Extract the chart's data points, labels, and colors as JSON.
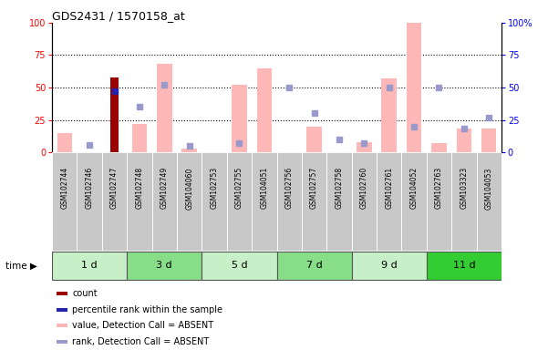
{
  "title": "GDS2431 / 1570158_at",
  "samples": [
    "GSM102744",
    "GSM102746",
    "GSM102747",
    "GSM102748",
    "GSM102749",
    "GSM104060",
    "GSM102753",
    "GSM102755",
    "GSM104051",
    "GSM102756",
    "GSM102757",
    "GSM102758",
    "GSM102760",
    "GSM102761",
    "GSM104052",
    "GSM102763",
    "GSM103323",
    "GSM104053"
  ],
  "time_groups": [
    {
      "label": "1 d",
      "start": 0,
      "end": 3,
      "color": "#c8f0c8"
    },
    {
      "label": "3 d",
      "start": 3,
      "end": 6,
      "color": "#88dd88"
    },
    {
      "label": "5 d",
      "start": 6,
      "end": 9,
      "color": "#c8f0c8"
    },
    {
      "label": "7 d",
      "start": 9,
      "end": 12,
      "color": "#88dd88"
    },
    {
      "label": "9 d",
      "start": 12,
      "end": 15,
      "color": "#c8f0c8"
    },
    {
      "label": "11 d",
      "start": 15,
      "end": 18,
      "color": "#33cc33"
    }
  ],
  "bar_values_pink": [
    15,
    0,
    0,
    22,
    68,
    3,
    0,
    52,
    65,
    0,
    20,
    0,
    8,
    57,
    100,
    7,
    18,
    18
  ],
  "bar_values_red": [
    0,
    0,
    58,
    0,
    0,
    0,
    0,
    0,
    0,
    0,
    0,
    0,
    0,
    0,
    0,
    0,
    0,
    0
  ],
  "dot_values_blue_dark": [
    0,
    0,
    47,
    0,
    0,
    0,
    0,
    0,
    0,
    0,
    0,
    0,
    0,
    0,
    0,
    0,
    0,
    0
  ],
  "dot_values_blue_light": [
    0,
    6,
    0,
    35,
    52,
    5,
    0,
    7,
    0,
    50,
    30,
    10,
    7,
    50,
    20,
    50,
    18,
    27
  ],
  "ylim": [
    0,
    100
  ],
  "yticks": [
    0,
    25,
    50,
    75,
    100
  ],
  "bar_pink_color": "#ffb8b8",
  "bar_red_color": "#990000",
  "dot_dark_blue_color": "#2222aa",
  "dot_light_blue_color": "#9999cc",
  "sample_bg_color": "#c8c8c8",
  "legend": [
    {
      "color": "#990000",
      "label": "count"
    },
    {
      "color": "#2222aa",
      "label": "percentile rank within the sample"
    },
    {
      "color": "#ffb8b8",
      "label": "value, Detection Call = ABSENT"
    },
    {
      "color": "#9999cc",
      "label": "rank, Detection Call = ABSENT"
    }
  ]
}
